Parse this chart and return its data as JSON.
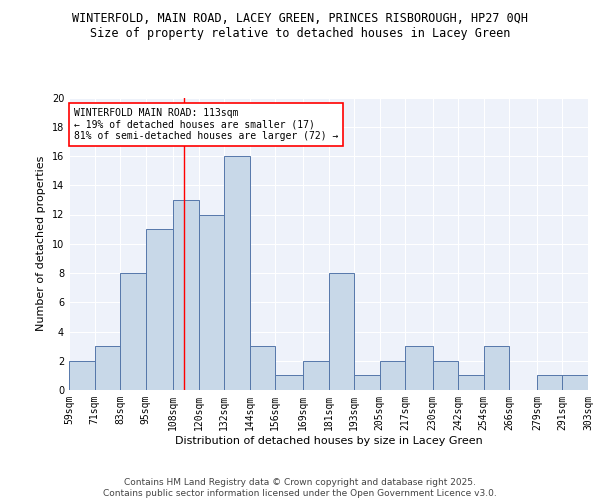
{
  "title1": "WINTERFOLD, MAIN ROAD, LACEY GREEN, PRINCES RISBOROUGH, HP27 0QH",
  "title2": "Size of property relative to detached houses in Lacey Green",
  "xlabel": "Distribution of detached houses by size in Lacey Green",
  "ylabel": "Number of detached properties",
  "bin_labels": [
    "59sqm",
    "71sqm",
    "83sqm",
    "95sqm",
    "108sqm",
    "120sqm",
    "132sqm",
    "144sqm",
    "156sqm",
    "169sqm",
    "181sqm",
    "193sqm",
    "205sqm",
    "217sqm",
    "230sqm",
    "242sqm",
    "254sqm",
    "266sqm",
    "279sqm",
    "291sqm",
    "303sqm"
  ],
  "bin_edges": [
    59,
    71,
    83,
    95,
    108,
    120,
    132,
    144,
    156,
    169,
    181,
    193,
    205,
    217,
    230,
    242,
    254,
    266,
    279,
    291,
    303
  ],
  "bar_heights": [
    2,
    3,
    8,
    11,
    13,
    12,
    16,
    3,
    1,
    2,
    8,
    1,
    2,
    3,
    2,
    1,
    3,
    0,
    1,
    1
  ],
  "bar_color": "#c8d8e8",
  "bar_edge_color": "#5577aa",
  "vline_x": 113,
  "vline_color": "red",
  "annotation_line1": "WINTERFOLD MAIN ROAD: 113sqm",
  "annotation_line2": "← 19% of detached houses are smaller (17)",
  "annotation_line3": "81% of semi-detached houses are larger (72) →",
  "annotation_box_edge": "red",
  "ylim": [
    0,
    20
  ],
  "yticks": [
    0,
    2,
    4,
    6,
    8,
    10,
    12,
    14,
    16,
    18,
    20
  ],
  "background_color": "#eef2fa",
  "footer_text": "Contains HM Land Registry data © Crown copyright and database right 2025.\nContains public sector information licensed under the Open Government Licence v3.0.",
  "title_fontsize": 8.5,
  "subtitle_fontsize": 8.5,
  "xlabel_fontsize": 8,
  "ylabel_fontsize": 8,
  "tick_fontsize": 7,
  "annotation_fontsize": 7,
  "footer_fontsize": 6.5
}
